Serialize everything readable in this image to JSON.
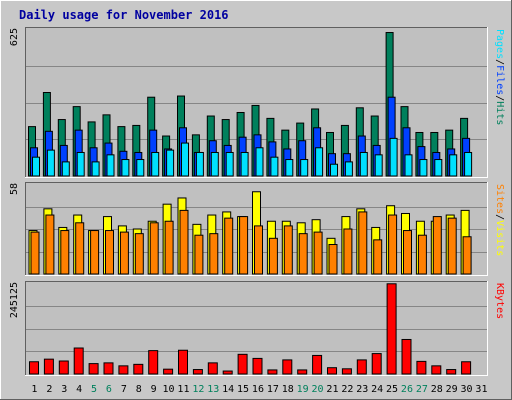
{
  "title": "Daily usage for November 2016",
  "colors": {
    "hits": "#00805c",
    "files": "#0040ff",
    "pages": "#00e0ff",
    "visits": "#ffff00",
    "sites": "#ff8000",
    "kbytes": "#ff0000",
    "plot_bg": "#c0c0c0",
    "outer_bg": "#c8c8c8",
    "title": "#0000a0"
  },
  "chart_data": [
    {
      "type": "bar",
      "panel": "hits-files-pages",
      "ylim": [
        0,
        625
      ],
      "y_tick_label": "625",
      "legend": [
        "Pages",
        "/",
        "Files",
        "/",
        "Hits"
      ],
      "categories": [
        "1",
        "2",
        "3",
        "4",
        "5",
        "6",
        "7",
        "8",
        "9",
        "10",
        "11",
        "12",
        "13",
        "14",
        "15",
        "16",
        "17",
        "18",
        "19",
        "20",
        "21",
        "22",
        "23",
        "24",
        "25",
        "26",
        "27",
        "28",
        "29",
        "30",
        "31"
      ],
      "series": [
        {
          "name": "Hits",
          "values": [
            210,
            355,
            240,
            295,
            230,
            260,
            210,
            215,
            335,
            170,
            340,
            175,
            255,
            240,
            270,
            300,
            245,
            195,
            225,
            285,
            185,
            215,
            290,
            255,
            610,
            295,
            185,
            185,
            195,
            245,
            0
          ]
        },
        {
          "name": "Files",
          "values": [
            120,
            190,
            130,
            195,
            120,
            140,
            105,
            100,
            195,
            115,
            205,
            100,
            150,
            130,
            165,
            175,
            145,
            115,
            150,
            205,
            95,
            95,
            170,
            130,
            335,
            205,
            125,
            100,
            115,
            160,
            0
          ]
        },
        {
          "name": "Pages",
          "values": [
            80,
            110,
            60,
            100,
            60,
            90,
            70,
            70,
            100,
            110,
            140,
            100,
            100,
            100,
            100,
            120,
            80,
            70,
            70,
            120,
            50,
            60,
            100,
            90,
            160,
            90,
            70,
            70,
            90,
            100,
            0
          ]
        }
      ]
    },
    {
      "type": "bar",
      "panel": "visits-sites",
      "ylim": [
        0,
        58
      ],
      "y_tick_label": "58",
      "legend": [
        "Sites",
        "/",
        "Visits"
      ],
      "categories": [
        "1",
        "2",
        "3",
        "4",
        "5",
        "6",
        "7",
        "8",
        "9",
        "10",
        "11",
        "12",
        "13",
        "14",
        "15",
        "16",
        "17",
        "18",
        "19",
        "20",
        "21",
        "22",
        "23",
        "24",
        "25",
        "26",
        "27",
        "28",
        "29",
        "30",
        "31"
      ],
      "series": [
        {
          "name": "Visits",
          "values": [
            28,
            42,
            30,
            38,
            28,
            37,
            31,
            29,
            34,
            45,
            49,
            32,
            38,
            40,
            37,
            53,
            34,
            34,
            33,
            35,
            23,
            37,
            42,
            30,
            44,
            39,
            34,
            34,
            38,
            41,
            0
          ]
        },
        {
          "name": "Sites",
          "values": [
            27,
            38,
            28,
            33,
            28,
            28,
            27,
            26,
            33,
            34,
            41,
            25,
            26,
            36,
            37,
            31,
            23,
            31,
            26,
            27,
            19,
            29,
            40,
            22,
            38,
            28,
            25,
            37,
            36,
            24,
            0
          ]
        }
      ]
    },
    {
      "type": "bar",
      "panel": "kbytes",
      "ylim": [
        0,
        245125
      ],
      "y_tick_label": "245125",
      "legend": [
        "KBytes"
      ],
      "categories": [
        "1",
        "2",
        "3",
        "4",
        "5",
        "6",
        "7",
        "8",
        "9",
        "10",
        "11",
        "12",
        "13",
        "14",
        "15",
        "16",
        "17",
        "18",
        "19",
        "20",
        "21",
        "22",
        "23",
        "24",
        "25",
        "26",
        "27",
        "28",
        "29",
        "30",
        "31"
      ],
      "series": [
        {
          "name": "KBytes",
          "values": [
            33000,
            40000,
            35000,
            70000,
            28000,
            30000,
            22000,
            26000,
            63000,
            13000,
            64000,
            12000,
            30000,
            8000,
            53000,
            42000,
            11000,
            38000,
            11000,
            50000,
            17000,
            14000,
            38000,
            55000,
            243000,
            93000,
            34000,
            22000,
            12000,
            33000,
            0
          ]
        }
      ]
    }
  ],
  "x_labels": [
    "1",
    "2",
    "3",
    "4",
    "5",
    "6",
    "7",
    "8",
    "9",
    "10",
    "11",
    "12",
    "13",
    "14",
    "15",
    "16",
    "17",
    "18",
    "19",
    "20",
    "21",
    "22",
    "23",
    "24",
    "25",
    "26",
    "27",
    "28",
    "29",
    "30",
    "31"
  ],
  "weekend_days": [
    "5",
    "6",
    "12",
    "13",
    "19",
    "20",
    "26",
    "27"
  ],
  "x_label_color_weekday": "#000000",
  "x_label_color_weekend": "#00805c"
}
